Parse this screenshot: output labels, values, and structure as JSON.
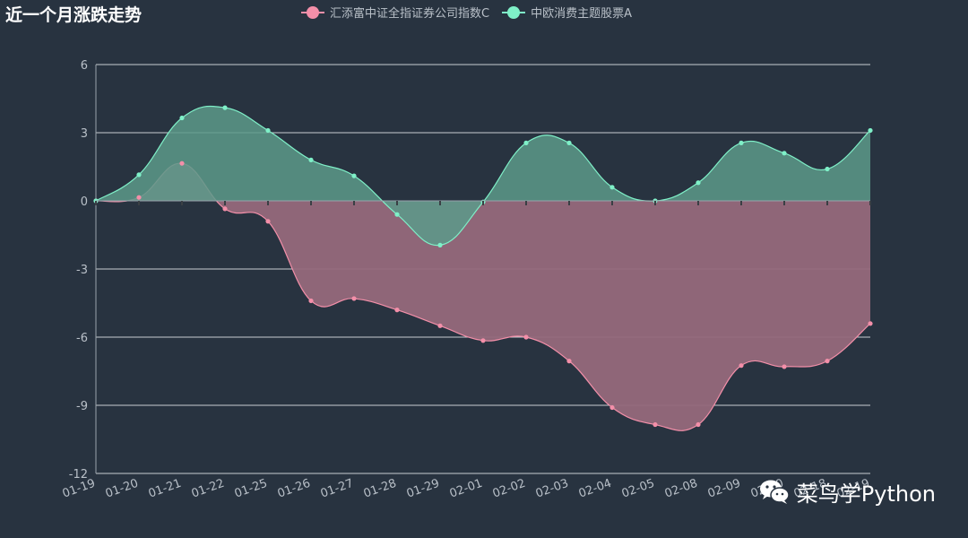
{
  "header": {
    "title": "近一个月涨跌走势"
  },
  "watermark": {
    "text": "菜鸟学Python",
    "icon": "wechat-icon"
  },
  "chart_data": {
    "type": "area",
    "categories": [
      "01-19",
      "01-20",
      "01-21",
      "01-22",
      "01-25",
      "01-26",
      "01-27",
      "01-28",
      "01-29",
      "02-01",
      "02-02",
      "02-03",
      "02-04",
      "02-05",
      "02-08",
      "02-09",
      "02-10",
      "02-18",
      "02-19"
    ],
    "ylim": [
      -12,
      6
    ],
    "yticks": [
      6,
      3,
      0,
      -3,
      -6,
      -9,
      -12
    ],
    "grid": true,
    "legend_position": "top-center",
    "series": [
      {
        "name": "汇添富中证全指证券公司指数C",
        "color": "#f38fa9",
        "fill": "#95697b",
        "values": [
          0,
          0.15,
          1.65,
          -0.35,
          -0.9,
          -4.4,
          -4.3,
          -4.8,
          -5.5,
          -6.15,
          -6.0,
          -7.05,
          -9.1,
          -9.85,
          -9.85,
          -7.25,
          -7.3,
          -7.05,
          -5.4
        ]
      },
      {
        "name": "中欧消费主题股票A",
        "color": "#7ff0c8",
        "fill": "#5c9a8a",
        "values": [
          0,
          1.15,
          3.65,
          4.1,
          3.1,
          1.8,
          1.1,
          -0.6,
          -1.95,
          -0.05,
          2.55,
          2.55,
          0.6,
          0,
          0.8,
          2.55,
          2.1,
          1.4,
          3.1
        ]
      }
    ]
  }
}
